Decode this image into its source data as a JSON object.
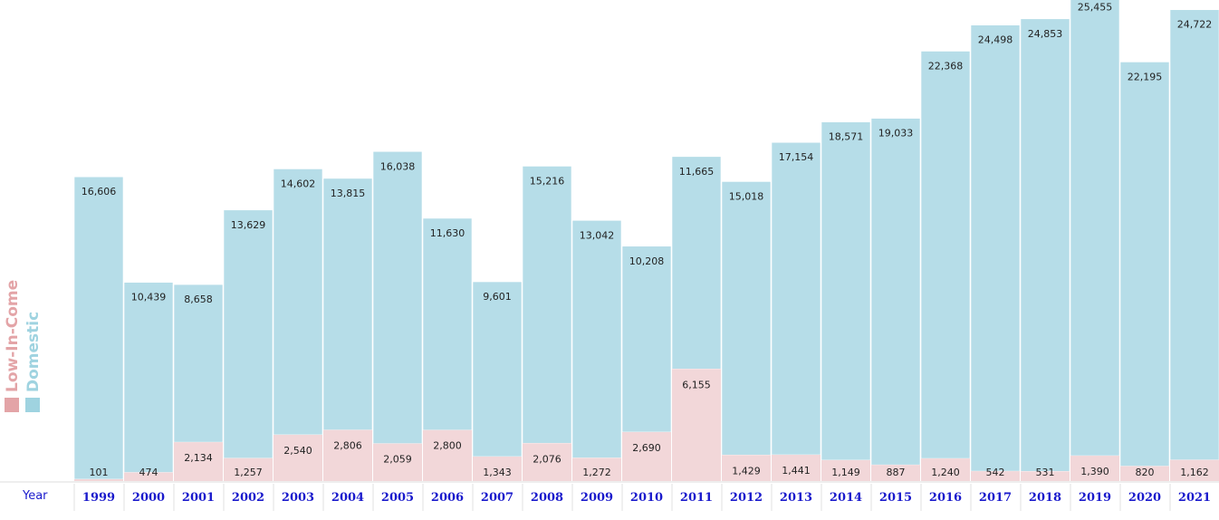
{
  "chart_data": {
    "type": "bar",
    "stacked": true,
    "xlabel": "Year",
    "ylabel": "",
    "title": "",
    "categories": [
      "1999",
      "2000",
      "2001",
      "2002",
      "2003",
      "2004",
      "2005",
      "2006",
      "2007",
      "2008",
      "2009",
      "2010",
      "2011",
      "2012",
      "2013",
      "2014",
      "2015",
      "2016",
      "2017",
      "2018",
      "2019",
      "2020",
      "2021"
    ],
    "series": [
      {
        "name": "Low-In-Come",
        "color": "#f2d7d9",
        "values": [
          101,
          474,
          2134,
          1257,
          2540,
          2806,
          2059,
          2800,
          1343,
          2076,
          1272,
          2690,
          6155,
          1429,
          1441,
          1149,
          887,
          1240,
          542,
          531,
          1390,
          820,
          1162
        ]
      },
      {
        "name": "Domestic",
        "color": "#b6dde8",
        "values": [
          16606,
          10439,
          8658,
          13629,
          14602,
          13815,
          16038,
          11630,
          9601,
          15216,
          13042,
          10208,
          11665,
          15018,
          17154,
          18571,
          19033,
          22368,
          24498,
          24853,
          25455,
          22195,
          24722
        ]
      }
    ],
    "legend_position": "left-vertical",
    "legend_colors": {
      "low": "#e3a4a7",
      "domestic": "#9fd3e0"
    },
    "label_color": "#1a1acc",
    "grid": false
  }
}
